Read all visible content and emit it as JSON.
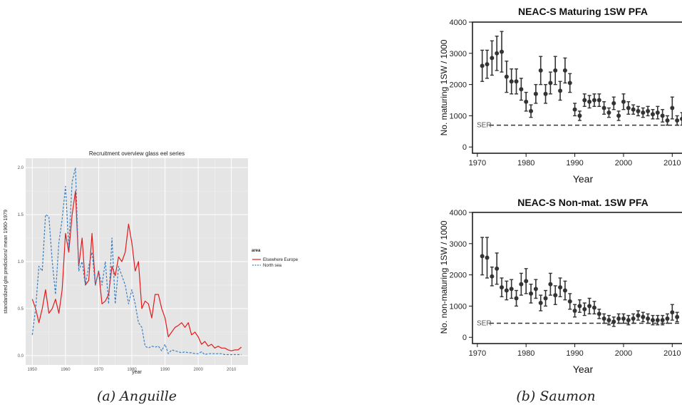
{
  "captions": {
    "a": "(a) Anguille",
    "b": "(b) Saumon"
  },
  "colors": {
    "elsewhere": "#e31a1c",
    "northsea": "#3a7fc1",
    "panel_bg": "#e5e5e5",
    "salmon_marks": "#333333"
  },
  "chart_data": [
    {
      "type": "line",
      "title": "Recruitment overview glass eel series",
      "xlabel": "year",
      "ylabel": "standardized glm predictions/ mean 1960-1979",
      "xlim": [
        1948,
        2015
      ],
      "ylim": [
        -0.1,
        2.1
      ],
      "x_ticks": [
        "1950",
        "1960",
        "1970",
        "1980",
        "1990",
        "2000",
        "2010"
      ],
      "y_ticks": [
        "0.0",
        "0.5",
        "1.0",
        "1.5",
        "2.0"
      ],
      "legend_title": "area",
      "legend_position": "right",
      "grid": true,
      "series": [
        {
          "name": "Elsewhere Europe",
          "color": "#e31a1c",
          "style": "solid",
          "x": [
            1950,
            1951,
            1952,
            1953,
            1954,
            1955,
            1956,
            1957,
            1958,
            1959,
            1960,
            1961,
            1962,
            1963,
            1964,
            1965,
            1966,
            1967,
            1968,
            1969,
            1970,
            1971,
            1972,
            1973,
            1974,
            1975,
            1976,
            1977,
            1978,
            1979,
            1980,
            1981,
            1982,
            1983,
            1984,
            1985,
            1986,
            1987,
            1988,
            1989,
            1990,
            1991,
            1992,
            1993,
            1994,
            1995,
            1996,
            1997,
            1998,
            1999,
            2000,
            2001,
            2002,
            2003,
            2004,
            2005,
            2006,
            2007,
            2008,
            2009,
            2010,
            2011,
            2012,
            2013
          ],
          "y": [
            0.6,
            0.5,
            0.35,
            0.5,
            0.7,
            0.45,
            0.5,
            0.6,
            0.45,
            0.7,
            1.3,
            1.1,
            1.5,
            1.75,
            0.95,
            1.25,
            0.75,
            0.8,
            1.3,
            0.75,
            0.9,
            0.55,
            0.58,
            0.65,
            0.95,
            0.85,
            1.05,
            1.0,
            1.1,
            1.4,
            1.2,
            0.9,
            1.0,
            0.5,
            0.58,
            0.55,
            0.4,
            0.65,
            0.65,
            0.5,
            0.4,
            0.2,
            0.25,
            0.3,
            0.32,
            0.35,
            0.3,
            0.35,
            0.22,
            0.25,
            0.2,
            0.12,
            0.15,
            0.1,
            0.12,
            0.08,
            0.1,
            0.08,
            0.08,
            0.06,
            0.05,
            0.06,
            0.06,
            0.09
          ]
        },
        {
          "name": "North sea",
          "color": "#3a7fc1",
          "style": "dashed",
          "x": [
            1950,
            1951,
            1952,
            1953,
            1954,
            1955,
            1956,
            1957,
            1958,
            1959,
            1960,
            1961,
            1962,
            1963,
            1964,
            1965,
            1966,
            1967,
            1968,
            1969,
            1970,
            1971,
            1972,
            1973,
            1974,
            1975,
            1976,
            1977,
            1978,
            1979,
            1980,
            1981,
            1982,
            1983,
            1984,
            1985,
            1986,
            1987,
            1988,
            1989,
            1990,
            1991,
            1992,
            1993,
            1994,
            1995,
            1996,
            1997,
            1998,
            1999,
            2000,
            2001,
            2002,
            2003,
            2004,
            2005,
            2006,
            2007,
            2008,
            2009,
            2010,
            2011,
            2012,
            2013
          ],
          "y": [
            0.22,
            0.5,
            0.95,
            0.9,
            1.5,
            1.48,
            1.0,
            0.65,
            1.2,
            1.45,
            1.8,
            1.15,
            1.85,
            2.0,
            0.9,
            1.0,
            0.75,
            0.95,
            1.1,
            0.75,
            0.9,
            0.75,
            1.0,
            0.55,
            1.25,
            0.55,
            0.95,
            0.85,
            0.75,
            0.55,
            0.7,
            0.55,
            0.35,
            0.3,
            0.1,
            0.08,
            0.1,
            0.09,
            0.1,
            0.05,
            0.12,
            0.02,
            0.06,
            0.05,
            0.04,
            0.03,
            0.04,
            0.03,
            0.03,
            0.02,
            0.02,
            0.04,
            0.01,
            0.02,
            0.02,
            0.02,
            0.02,
            0.02,
            0.01,
            0.01,
            0.01,
            0.01,
            0.01,
            0.01
          ]
        }
      ]
    },
    {
      "type": "scatter",
      "title": "NEAC-S Maturing 1SW  PFA",
      "xlabel": "Year",
      "ylabel": "No. maturing 1SW / 1000",
      "xlim": [
        1969,
        2012
      ],
      "ylim": [
        -200,
        4000
      ],
      "x_ticks": [
        "1970",
        "1980",
        "1990",
        "2000",
        "2010"
      ],
      "y_ticks": [
        "0",
        "1000",
        "2000",
        "3000",
        "4000"
      ],
      "reference_label": "SER",
      "reference_value": 700,
      "x": [
        1971,
        1972,
        1973,
        1974,
        1975,
        1976,
        1977,
        1978,
        1979,
        1980,
        1981,
        1982,
        1983,
        1984,
        1985,
        1986,
        1987,
        1988,
        1989,
        1990,
        1991,
        1992,
        1993,
        1994,
        1995,
        1996,
        1997,
        1998,
        1999,
        2000,
        2001,
        2002,
        2003,
        2004,
        2005,
        2006,
        2007,
        2008,
        2009,
        2010,
        2011,
        2012
      ],
      "y": [
        2600,
        2650,
        2850,
        3000,
        3050,
        2250,
        2100,
        2100,
        1850,
        1450,
        1150,
        1700,
        2450,
        1700,
        2050,
        2450,
        1800,
        2450,
        2050,
        1200,
        1000,
        1500,
        1450,
        1500,
        1500,
        1250,
        1100,
        1400,
        1000,
        1450,
        1250,
        1200,
        1150,
        1100,
        1150,
        1050,
        1100,
        1000,
        850,
        1250,
        850,
        900
      ],
      "err": [
        500,
        450,
        550,
        550,
        650,
        500,
        400,
        400,
        350,
        300,
        200,
        300,
        450,
        300,
        350,
        450,
        300,
        400,
        300,
        200,
        150,
        200,
        200,
        200,
        200,
        200,
        150,
        200,
        150,
        250,
        200,
        150,
        150,
        150,
        150,
        150,
        200,
        200,
        150,
        350,
        150,
        200
      ]
    },
    {
      "type": "scatter",
      "title": "NEAC-S Non-mat. 1SW  PFA",
      "xlabel": "Year",
      "ylabel": "No. non-maturing 1SW / 1000",
      "xlim": [
        1969,
        2012
      ],
      "ylim": [
        -200,
        4000
      ],
      "x_ticks": [
        "1970",
        "1980",
        "1990",
        "2000",
        "2010"
      ],
      "y_ticks": [
        "0",
        "1000",
        "2000",
        "3000",
        "4000"
      ],
      "reference_label": "SER",
      "reference_value": 450,
      "x": [
        1971,
        1972,
        1973,
        1974,
        1975,
        1976,
        1977,
        1978,
        1979,
        1980,
        1981,
        1982,
        1983,
        1984,
        1985,
        1986,
        1987,
        1988,
        1989,
        1990,
        1991,
        1992,
        1993,
        1994,
        1995,
        1996,
        1997,
        1998,
        1999,
        2000,
        2001,
        2002,
        2003,
        2004,
        2005,
        2006,
        2007,
        2008,
        2009,
        2010,
        2011
      ],
      "y": [
        2600,
        2550,
        1950,
        2200,
        1600,
        1500,
        1550,
        1250,
        1700,
        1800,
        1400,
        1550,
        1100,
        1250,
        1700,
        1350,
        1600,
        1500,
        1150,
        850,
        1000,
        900,
        1000,
        950,
        750,
        600,
        550,
        500,
        600,
        600,
        550,
        600,
        700,
        650,
        600,
        550,
        550,
        550,
        600,
        800,
        650
      ],
      "err": [
        600,
        650,
        300,
        500,
        300,
        300,
        300,
        250,
        350,
        400,
        300,
        300,
        250,
        250,
        350,
        300,
        300,
        300,
        250,
        200,
        200,
        200,
        250,
        200,
        150,
        150,
        150,
        150,
        150,
        150,
        150,
        150,
        150,
        150,
        150,
        150,
        150,
        150,
        150,
        250,
        150
      ]
    }
  ]
}
